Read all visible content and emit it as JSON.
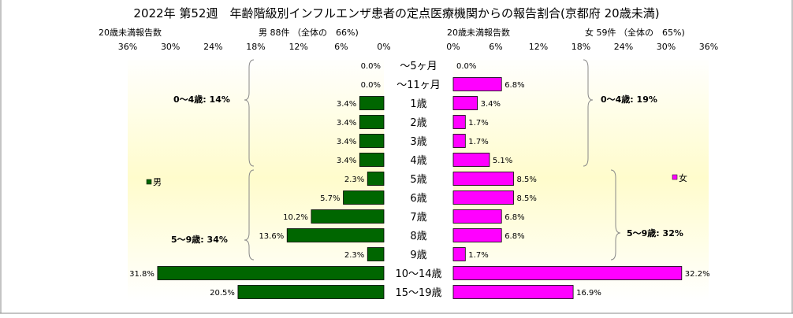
{
  "title": "2022年 第52週　年齢階級別インフルエンザ患者の定点医療機関からの報告割合(京都府 20歳未満)",
  "chart_data": {
    "type": "bar",
    "orientation": "horizontal-butterfly",
    "categories": [
      "～5ヶ月",
      "～11ヶ月",
      "1歳",
      "2歳",
      "3歳",
      "4歳",
      "5歳",
      "6歳",
      "7歳",
      "8歳",
      "9歳",
      "10～14歳",
      "15～19歳"
    ],
    "axis_caption": "20歳未満報告数",
    "x_ticks": [
      "36%",
      "30%",
      "24%",
      "18%",
      "12%",
      "6%",
      "0%"
    ],
    "x_ticks_right": [
      "0%",
      "6%",
      "12%",
      "18%",
      "24%",
      "30%",
      "36%"
    ],
    "xlim": [
      0,
      36
    ],
    "series": [
      {
        "name": "男",
        "header": "男 88件 （全体の　66%)",
        "color": "#006600",
        "values": [
          0.0,
          0.0,
          3.4,
          3.4,
          3.4,
          3.4,
          2.3,
          5.7,
          10.2,
          13.6,
          2.3,
          31.8,
          20.5
        ],
        "labels": [
          "0.0%",
          "0.0%",
          "3.4%",
          "3.4%",
          "3.4%",
          "3.4%",
          "2.3%",
          "5.7%",
          "10.2%",
          "13.6%",
          "2.3%",
          "31.8%",
          "20.5%"
        ],
        "group_labels": [
          "0～4歳: 14%",
          "5～9歳: 34%"
        ]
      },
      {
        "name": "女",
        "header": "女 59件 （全体の　65%)",
        "color": "#ff00ff",
        "values": [
          0.0,
          6.8,
          3.4,
          1.7,
          1.7,
          5.1,
          8.5,
          8.5,
          6.8,
          6.8,
          1.7,
          32.2,
          16.9
        ],
        "labels": [
          "0.0%",
          "6.8%",
          "3.4%",
          "1.7%",
          "1.7%",
          "5.1%",
          "8.5%",
          "8.5%",
          "6.8%",
          "6.8%",
          "1.7%",
          "32.2%",
          "16.9%"
        ],
        "group_labels": [
          "0～4歳: 19%",
          "5～9歳: 32%"
        ]
      }
    ],
    "legend_position": "inside-outer-edges"
  }
}
